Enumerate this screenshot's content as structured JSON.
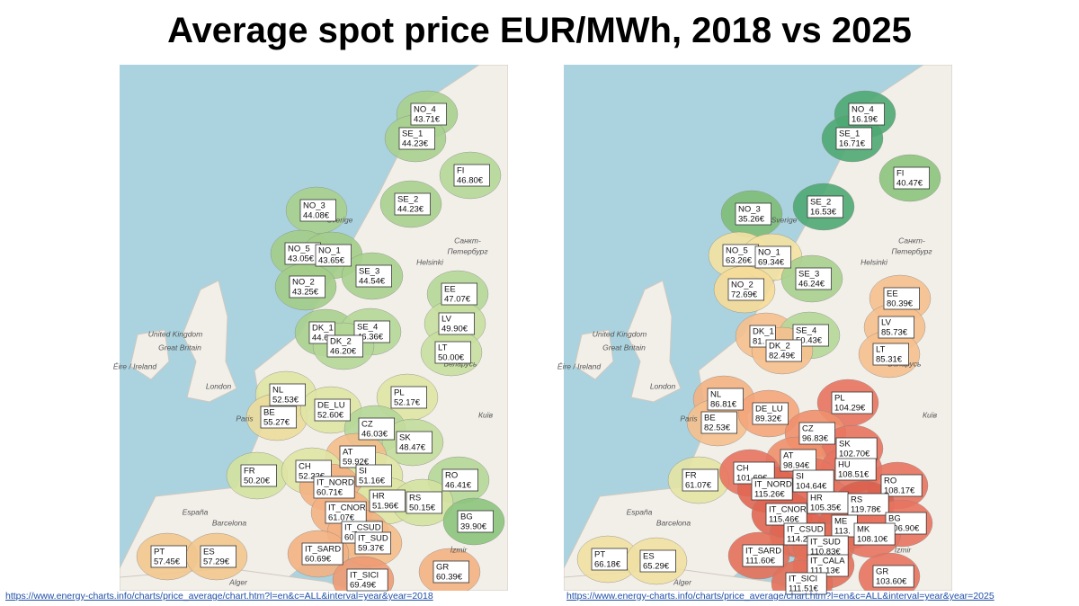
{
  "header": {
    "title": "Average spot price EUR/MWh, 2018 vs 2025"
  },
  "maps": [
    {
      "source": "https://www.energy-charts.info/charts/price_average/chart.htm?l=en&c=ALL&interval=year&year=2018",
      "places": [
        "United Kingdom",
        "Great Britain",
        "Éire / Ireland",
        "London",
        "Paris",
        "Barcelona",
        "España",
        "Alger",
        "İzmir",
        "Київ",
        "Беларусь",
        "Санкт-",
        "Петербург",
        "Helsinki",
        "Sverige"
      ],
      "zones": [
        {
          "zone": "NO_4",
          "price": "43.71€",
          "color": "#a9d08e"
        },
        {
          "zone": "SE_1",
          "price": "44.23€",
          "color": "#a9d08e"
        },
        {
          "zone": "FI",
          "price": "46.80€",
          "color": "#b5d798"
        },
        {
          "zone": "SE_2",
          "price": "44.23€",
          "color": "#a9d08e"
        },
        {
          "zone": "NO_3",
          "price": "44.08€",
          "color": "#a9d08e"
        },
        {
          "zone": "NO_5",
          "price": "43.05€",
          "color": "#a3cd88"
        },
        {
          "zone": "NO_1",
          "price": "43.65€",
          "color": "#a3cd88"
        },
        {
          "zone": "SE_3",
          "price": "44.54€",
          "color": "#a9d08e"
        },
        {
          "zone": "NO_2",
          "price": "43.25€",
          "color": "#a3cd88"
        },
        {
          "zone": "EE",
          "price": "47.07€",
          "color": "#b5d798"
        },
        {
          "zone": "LV",
          "price": "49.90€",
          "color": "#c8dfa0"
        },
        {
          "zone": "DK_1",
          "price": "44.6",
          "color": "#a9d08e"
        },
        {
          "zone": "SE_4",
          "price": "46.36€",
          "color": "#b5d798"
        },
        {
          "zone": "DK_2",
          "price": "46.20€",
          "color": "#b5d798"
        },
        {
          "zone": "LT",
          "price": "50.00€",
          "color": "#c8dfa0"
        },
        {
          "zone": "NL",
          "price": "52.53€",
          "color": "#dfe4a4"
        },
        {
          "zone": "PL",
          "price": "52.17€",
          "color": "#dfe4a4"
        },
        {
          "zone": "BE",
          "price": "55.27€",
          "color": "#ecdc9c"
        },
        {
          "zone": "DE_LU",
          "price": "52.60€",
          "color": "#dfe4a4"
        },
        {
          "zone": "CZ",
          "price": "46.03€",
          "color": "#b5d798"
        },
        {
          "zone": "SK",
          "price": "48.47€",
          "color": "#c2dc9c"
        },
        {
          "zone": "AT",
          "price": "59.92€",
          "color": "#f4bd8a"
        },
        {
          "zone": "FR",
          "price": "50.20€",
          "color": "#d4e2a0"
        },
        {
          "zone": "CH",
          "price": "52.22€",
          "color": "#dfe4a4"
        },
        {
          "zone": "SI",
          "price": "51.16€",
          "color": "#dfe4a4"
        },
        {
          "zone": "IT_NORD",
          "price": "60.71€",
          "color": "#f4b183"
        },
        {
          "zone": "RO",
          "price": "46.41€",
          "color": "#b5d798"
        },
        {
          "zone": "HR",
          "price": "51.96€",
          "color": "#dfe4a4"
        },
        {
          "zone": "IT_CNOR",
          "price": "61.07€",
          "color": "#f4b183"
        },
        {
          "zone": "RS",
          "price": "50.15€",
          "color": "#d4e2a0"
        },
        {
          "zone": "BG",
          "price": "39.90€",
          "color": "#8cc47c"
        },
        {
          "zone": "IT_CSUD",
          "price": "60.9",
          "color": "#f4b183"
        },
        {
          "zone": "IT_SUD",
          "price": "59.37€",
          "color": "#f4bd8a"
        },
        {
          "zone": "PT",
          "price": "57.45€",
          "color": "#f2c78e"
        },
        {
          "zone": "ES",
          "price": "57.29€",
          "color": "#f2c78e"
        },
        {
          "zone": "IT_SARD",
          "price": "60.69€",
          "color": "#f4b183"
        },
        {
          "zone": "GR",
          "price": "60.39€",
          "color": "#f4b183"
        },
        {
          "zone": "IT_SICI",
          "price": "69.49€",
          "color": "#ee9a72"
        }
      ]
    },
    {
      "source": "https://www.energy-charts.info/charts/price_average/chart.htm?l=en&c=ALL&interval=year&year=2025",
      "places": [
        "United Kingdom",
        "Great Britain",
        "Éire / Ireland",
        "London",
        "Paris",
        "Barcelona",
        "España",
        "Alger",
        "İzmir",
        "Київ",
        "Беларусь",
        "Санкт-",
        "Петербург",
        "Helsinki",
        "Sverige"
      ],
      "zones": [
        {
          "zone": "NO_4",
          "price": "16.19€",
          "color": "#4ea872"
        },
        {
          "zone": "SE_1",
          "price": "16.71€",
          "color": "#4ea872"
        },
        {
          "zone": "FI",
          "price": "40.47€",
          "color": "#8cc47c"
        },
        {
          "zone": "SE_2",
          "price": "16.53€",
          "color": "#4ea872"
        },
        {
          "zone": "NO_3",
          "price": "35.26€",
          "color": "#7fbd78"
        },
        {
          "zone": "NO_5",
          "price": "63.26€",
          "color": "#f4e2a2"
        },
        {
          "zone": "NO_1",
          "price": "69.34€",
          "color": "#f4e2a2"
        },
        {
          "zone": "SE_3",
          "price": "46.24€",
          "color": "#a9d08e"
        },
        {
          "zone": "NO_2",
          "price": "72.69€",
          "color": "#f6dc98"
        },
        {
          "zone": "EE",
          "price": "80.39€",
          "color": "#f6c08e"
        },
        {
          "zone": "LV",
          "price": "85.73€",
          "color": "#f6c08e"
        },
        {
          "zone": "DK_1",
          "price": "81.",
          "color": "#f6c08e"
        },
        {
          "zone": "SE_4",
          "price": "50.43€",
          "color": "#b5d798"
        },
        {
          "zone": "DK_2",
          "price": "82.49€",
          "color": "#f6c08e"
        },
        {
          "zone": "LT",
          "price": "85.31€",
          "color": "#f6c08e"
        },
        {
          "zone": "NL",
          "price": "86.81€",
          "color": "#f4b183"
        },
        {
          "zone": "PL",
          "price": "104.29€",
          "color": "#e8735f"
        },
        {
          "zone": "BE",
          "price": "82.53€",
          "color": "#f6c08e"
        },
        {
          "zone": "DE_LU",
          "price": "89.32€",
          "color": "#f4a57a"
        },
        {
          "zone": "CZ",
          "price": "96.83€",
          "color": "#ef8f6c"
        },
        {
          "zone": "SK",
          "price": "102.70€",
          "color": "#e8735f"
        },
        {
          "zone": "AT",
          "price": "98.94€",
          "color": "#ef8f6c"
        },
        {
          "zone": "HU",
          "price": "108.51€",
          "color": "#e8735f"
        },
        {
          "zone": "FR",
          "price": "61.07€",
          "color": "#e4e4a4"
        },
        {
          "zone": "CH",
          "price": "101.69€",
          "color": "#e8735f"
        },
        {
          "zone": "SI",
          "price": "104.64€",
          "color": "#e8735f"
        },
        {
          "zone": "IT_NORD",
          "price": "115.26€",
          "color": "#e06652"
        },
        {
          "zone": "RO",
          "price": "108.17€",
          "color": "#e8735f"
        },
        {
          "zone": "HR",
          "price": "105.35€",
          "color": "#e8735f"
        },
        {
          "zone": "IT_CNOR",
          "price": "115.46€",
          "color": "#e06652"
        },
        {
          "zone": "RS",
          "price": "119.78€",
          "color": "#dc5f4e"
        },
        {
          "zone": "ME",
          "price": "113.",
          "color": "#e06652"
        },
        {
          "zone": "BG",
          "price": "106.90€",
          "color": "#e8735f"
        },
        {
          "zone": "MK",
          "price": "108.10€",
          "color": "#e8735f"
        },
        {
          "zone": "IT_CSUD",
          "price": "114.2",
          "color": "#e06652"
        },
        {
          "zone": "IT_SUD",
          "price": "110.83€",
          "color": "#e4705a"
        },
        {
          "zone": "PT",
          "price": "66.18€",
          "color": "#f1e0a2"
        },
        {
          "zone": "ES",
          "price": "65.29€",
          "color": "#f1e0a2"
        },
        {
          "zone": "IT_SARD",
          "price": "111.60€",
          "color": "#e4705a"
        },
        {
          "zone": "IT_CALA",
          "price": "111.13€",
          "color": "#e4705a"
        },
        {
          "zone": "GR",
          "price": "103.60€",
          "color": "#e8735f"
        },
        {
          "zone": "IT_SICI",
          "price": "111.51€",
          "color": "#e4705a"
        }
      ]
    }
  ]
}
